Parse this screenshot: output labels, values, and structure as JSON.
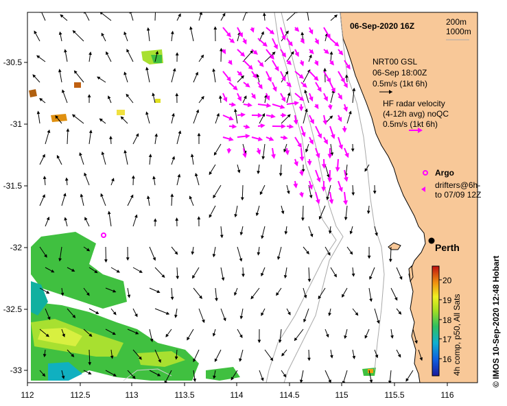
{
  "header": {
    "date_title": "06-Sep-2020 16Z",
    "depth_200": "200m",
    "depth_1000": "1000m"
  },
  "legend": {
    "gsl_line1": "NRT00 GSL",
    "gsl_line2": "06-Sep 18:00Z",
    "gsl_line3": "0.5m/s (1kt 6h)",
    "hf_line1": "HF radar velocity",
    "hf_line2": "(4-12h avg) noQC",
    "hf_line3": "0.5m/s (1kt 6h)",
    "argo_label": "Argo",
    "drifters_line1": "drifters@6h-",
    "drifters_line2": "to 07/09 12Z",
    "city": "Perth"
  },
  "colorbar": {
    "title": "4h comp, p50, All Sats",
    "ticks": [
      "20",
      "19",
      "18",
      "17",
      "16"
    ]
  },
  "credit": "© IMOS 10-Sep-2020 12:48 Hobart",
  "axes": {
    "x_ticks": [
      "112",
      "112.5",
      "113",
      "113.5",
      "114",
      "114.5",
      "115",
      "115.5",
      "116"
    ],
    "y_ticks": [
      "-30.5",
      "-31",
      "-31.5",
      "-32",
      "-32.5",
      "-33"
    ]
  },
  "colors": {
    "land": "#f8c898",
    "hf_radar": "#ff00ff",
    "gsl_arrow": "#000000",
    "isobath": "#a8a8a8"
  }
}
